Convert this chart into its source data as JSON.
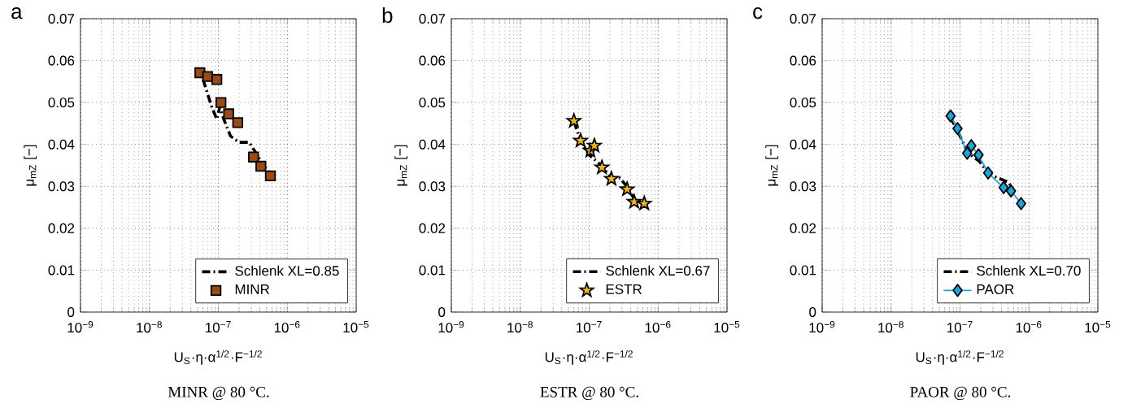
{
  "chart_data": [
    {
      "type": "scatter",
      "xlabel": "U$_{S}$·η·α$^{1/2}$·F$^{−1/2}$",
      "ylabel": "μ$_{mZ}$ [−]",
      "annotations": [
        "a",
        "MINR @ 80 °C."
      ],
      "log": "x",
      "grid": true,
      "legend": "bottom right",
      "xlim": [
        1e-09,
        1e-05
      ],
      "ylim": [
        0,
        0.07
      ],
      "xticks": [
        {
          "value": 1e-09,
          "label": "10$^{−9}$"
        },
        {
          "value": 1e-08,
          "label": "10$^{−8}$"
        },
        {
          "value": 1e-07,
          "label": "10$^{−7}$"
        },
        {
          "value": 1e-06,
          "label": "10$^{−6}$"
        },
        {
          "value": 1e-05,
          "label": "10$^{−5}$"
        }
      ],
      "yticks": [
        0,
        0.01,
        0.02,
        0.03,
        0.04,
        0.05,
        0.06,
        0.07
      ],
      "series": [
        {
          "name": "Schlenk XL=0.85",
          "type": "line",
          "line_style": "dashed",
          "marker": "none",
          "color": "#000000",
          "x": [
            6e-08,
            7e-08,
            8e-08,
            9.5e-08,
            1.05e-07,
            1.2e-07,
            1.5e-07,
            2e-07,
            2.8e-07,
            3.5e-07,
            4.5e-07,
            5.7e-07
          ],
          "values": [
            0.0555,
            0.052,
            0.049,
            0.046,
            0.049,
            0.046,
            0.042,
            0.0405,
            0.0405,
            0.038,
            0.035,
            0.033
          ]
        },
        {
          "name": "MINR",
          "marker": "square",
          "color": "#9b4a10",
          "x": [
            5.4e-08,
            7e-08,
            9.5e-08,
            1.09e-07,
            1.41e-07,
            1.91e-07,
            3.24e-07,
            4.14e-07,
            5.69e-07
          ],
          "values": [
            0.0571,
            0.0562,
            0.0555,
            0.05,
            0.0473,
            0.0452,
            0.037,
            0.0348,
            0.0325
          ]
        }
      ]
    },
    {
      "type": "scatter",
      "xlabel": "U$_{S}$·η·α$^{1/2}$·F$^{−1/2}$",
      "ylabel": "μ$_{mZ}$ [−]",
      "annotations": [
        "b",
        "ESTR @ 80 °C."
      ],
      "log": "x",
      "grid": true,
      "legend": "bottom right",
      "xlim": [
        1e-09,
        1e-05
      ],
      "ylim": [
        0,
        0.07
      ],
      "xticks": [
        {
          "value": 1e-09,
          "label": "10$^{−9}$"
        },
        {
          "value": 1e-08,
          "label": "10$^{−8}$"
        },
        {
          "value": 1e-07,
          "label": "10$^{−7}$"
        },
        {
          "value": 1e-06,
          "label": "10$^{−6}$"
        },
        {
          "value": 1e-05,
          "label": "10$^{−5}$"
        }
      ],
      "yticks": [
        0,
        0.01,
        0.02,
        0.03,
        0.04,
        0.05,
        0.06,
        0.07
      ],
      "series": [
        {
          "name": "Schlenk XL=0.67",
          "type": "line",
          "line_style": "dashed",
          "marker": "none",
          "color": "#000000",
          "x": [
            6e-08,
            7.5e-08,
            1e-07,
            1.5e-07,
            2.1e-07,
            2.8e-07,
            3.5e-07,
            4.5e-07
          ],
          "values": [
            0.0455,
            0.041,
            0.0375,
            0.035,
            0.032,
            0.032,
            0.03,
            0.027
          ]
        },
        {
          "name": "ESTR",
          "marker": "star",
          "color": "#f5b700",
          "x": [
            6e-08,
            7.5e-08,
            1.04e-07,
            1.19e-07,
            1.53e-07,
            2.1e-07,
            3.55e-07,
            4.5e-07,
            6.3e-07
          ],
          "values": [
            0.0456,
            0.0409,
            0.0385,
            0.0397,
            0.0345,
            0.0318,
            0.0293,
            0.0263,
            0.0259
          ]
        }
      ]
    },
    {
      "type": "scatter",
      "xlabel": "U$_{S}$·η·α$^{1/2}$·F$^{−1/2}$",
      "ylabel": "μ$_{mZ}$ [−]",
      "annotations": [
        "c",
        "PAOR @ 80 °C."
      ],
      "log": "x",
      "grid": true,
      "legend": "bottom right",
      "xlim": [
        1e-09,
        1e-05
      ],
      "ylim": [
        0,
        0.07
      ],
      "xticks": [
        {
          "value": 1e-09,
          "label": "10$^{−9}$"
        },
        {
          "value": 1e-08,
          "label": "10$^{−8}$"
        },
        {
          "value": 1e-07,
          "label": "10$^{−7}$"
        },
        {
          "value": 1e-06,
          "label": "10$^{−6}$"
        },
        {
          "value": 1e-05,
          "label": "10$^{−5}$"
        }
      ],
      "yticks": [
        0,
        0.01,
        0.02,
        0.03,
        0.04,
        0.05,
        0.06,
        0.07
      ],
      "series": [
        {
          "name": "Schlenk XL=0.70",
          "type": "line",
          "line_style": "dashed",
          "marker": "none",
          "color": "#000000",
          "x": [
            7.3e-08,
            1e-07,
            1.3e-07,
            1.9e-07,
            2.6e-07,
            3e-07,
            5e-07,
            5.5e-07
          ],
          "values": [
            0.0465,
            0.042,
            0.038,
            0.036,
            0.033,
            0.0325,
            0.031,
            0.03
          ]
        },
        {
          "name": "PAOR",
          "type": "line",
          "line_style": "solid",
          "marker": "diamond",
          "color": "#18a8e0",
          "x": [
            7.3e-08,
            9.2e-08,
            1.27e-07,
            1.46e-07,
            1.86e-07,
            2.56e-07,
            4.3e-07,
            5.5e-07,
            7.7e-07
          ],
          "values": [
            0.0468,
            0.0438,
            0.0379,
            0.0397,
            0.0375,
            0.0332,
            0.0297,
            0.0289,
            0.0259
          ]
        }
      ]
    }
  ]
}
